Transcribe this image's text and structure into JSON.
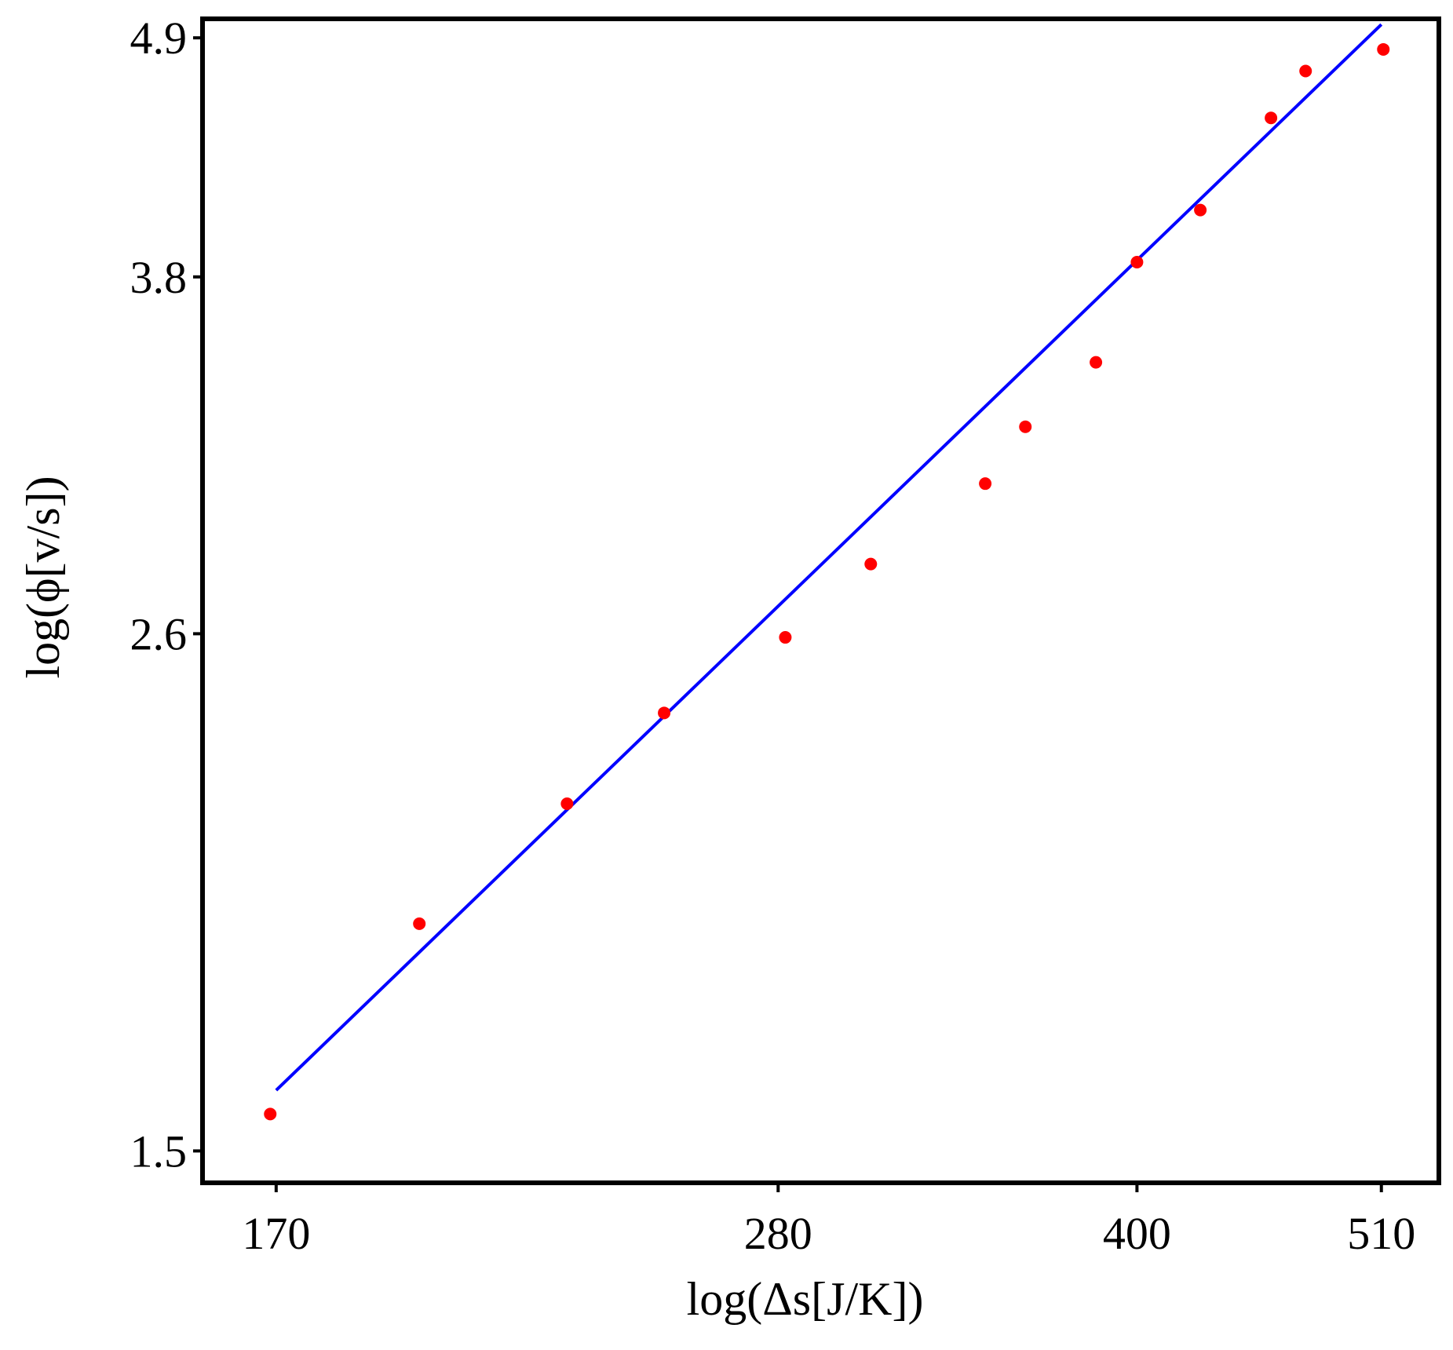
{
  "chart_data": {
    "type": "scatter",
    "title": "",
    "xlabel": "log(Δs[J/K])",
    "ylabel": "log(ϕ[v/s])",
    "x_scale": "log",
    "y_scale": "log",
    "xlim": [
      158,
      540
    ],
    "ylim": [
      1.45,
      5.0
    ],
    "x_ticks": [
      170,
      280,
      400,
      510
    ],
    "y_ticks": [
      1.5,
      2.6,
      3.8,
      4.9
    ],
    "grid": false,
    "legend": "none",
    "series": [
      {
        "kind": "points",
        "color": "#ff0000",
        "x": [
          169,
          196,
          227,
          250,
          282,
          307,
          344,
          358,
          384,
          400,
          426,
          457,
          473,
          511
        ],
        "y": [
          1.56,
          1.91,
          2.17,
          2.39,
          2.59,
          2.8,
          3.05,
          3.24,
          3.47,
          3.86,
          4.08,
          4.5,
          4.73,
          4.84
        ]
      },
      {
        "kind": "line",
        "color": "#0000ff",
        "x": [
          170,
          510
        ],
        "y": [
          1.6,
          4.97
        ]
      }
    ]
  }
}
